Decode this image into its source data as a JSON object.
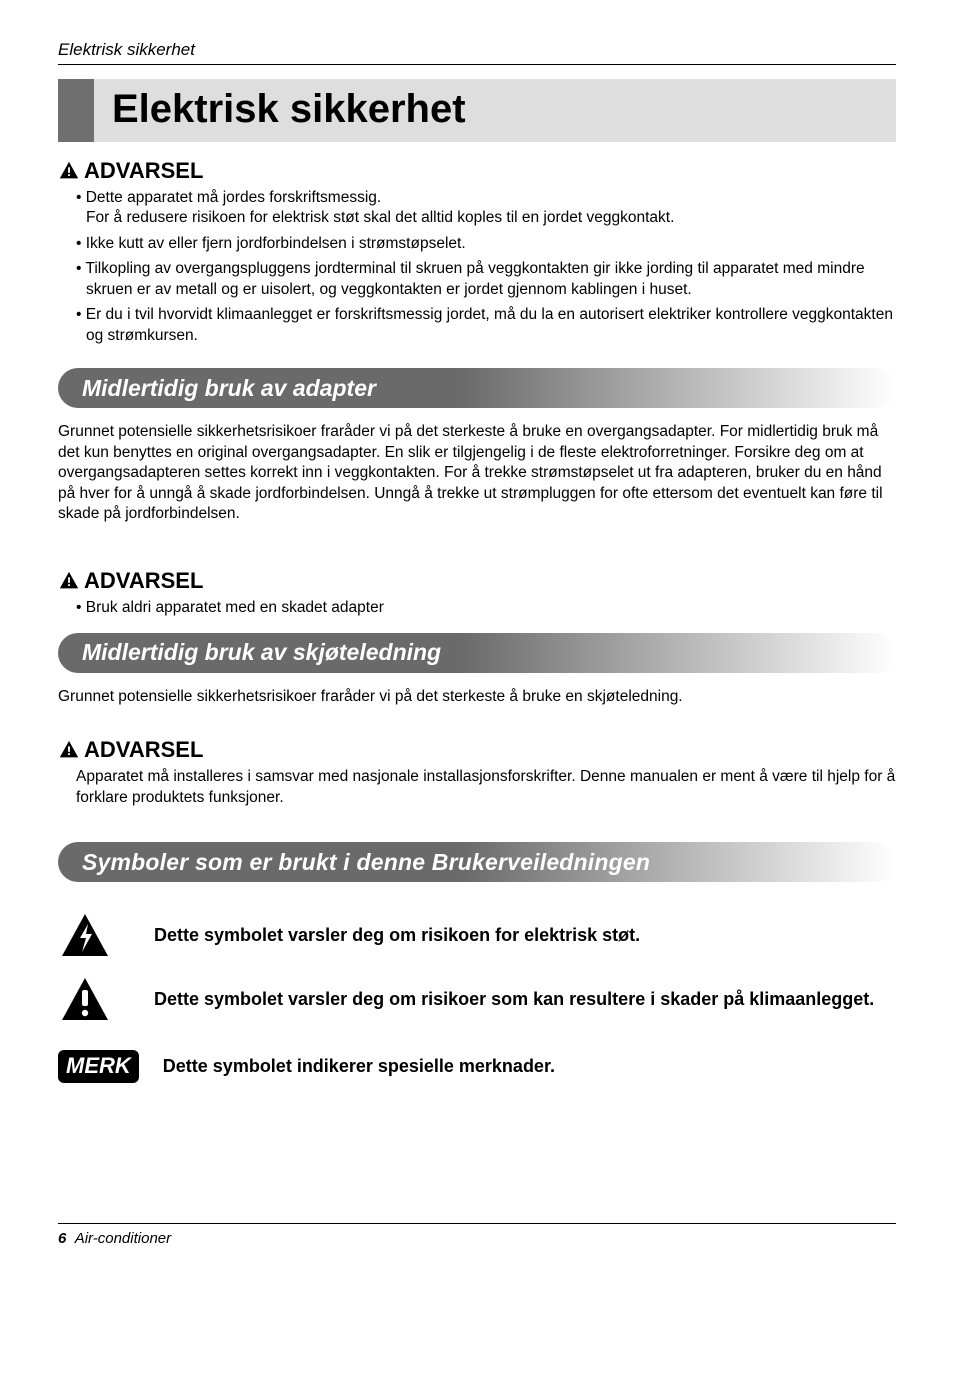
{
  "header": {
    "running_title": "Elektrisk sikkerhet"
  },
  "title": "Elektrisk sikkerhet",
  "warn_label": "ADVARSEL",
  "warn1_items": [
    "Dette apparatet må jordes forskriftsmessig.\nFor å redusere risikoen for elektrisk støt skal det alltid koples til en jordet veggkontakt.",
    "Ikke kutt av eller fjern jordforbindelsen i strømstøpselet.",
    "Tilkopling av overgangspluggens jordterminal til skruen på veggkontakten gir ikke jording til apparatet med mindre skruen er av metall og er uisolert, og veggkontakten er jordet gjennom kablingen i huset.",
    "Er du i tvil hvorvidt klimaanlegget er forskriftsmessig jordet, må du la en autorisert elektriker kontrollere veggkontakten og strømkursen."
  ],
  "section1": {
    "title": "Midlertidig bruk av adapter",
    "body": "Grunnet potensielle sikkerhetsrisikoer fraråder vi på det sterkeste å bruke en overgangsadapter. For midlertidig bruk må det kun benyttes en original overgangsadapter. En slik er tilgjengelig i de fleste elektroforretninger. Forsikre deg om at overgangsadapteren settes korrekt inn i veggkontakten. For å trekke strømstøpselet ut fra adapteren, bruker du en hånd på hver for å unngå å skade jordforbindelsen. Unngå å trekke ut strømpluggen for ofte ettersom det eventuelt kan føre til skade på jordforbindelsen."
  },
  "warn2_items": [
    "Bruk aldri apparatet med en skadet adapter"
  ],
  "section2": {
    "title": "Midlertidig bruk av skjøteledning",
    "body": "Grunnet potensielle sikkerhetsrisikoer fraråder vi på det sterkeste å bruke en skjøteledning."
  },
  "warn3_body": "Apparatet må installeres i samsvar med nasjonale installasjonsforskrifter. Denne manualen er ment å være til hjelp for å forklare produktets funksjoner.",
  "section3": {
    "title": "Symboler som er brukt i denne Brukerveiledningen"
  },
  "symbols": {
    "shock": "Dette symbolet varsler deg om risikoen for elektrisk støt.",
    "damage": "Dette symbolet varsler deg om risikoer som kan resultere i skader på klimaanlegget.",
    "note_label": "MERK",
    "note": "Dette symbolet indikerer spesielle merknader."
  },
  "footer": {
    "page": "6",
    "product": "Air-conditioner"
  },
  "colors": {
    "title_bar": "#6f6f6f",
    "title_bg": "#dedede",
    "section_grad_start": "#6a6a6a",
    "text": "#000000",
    "bg": "#ffffff"
  }
}
